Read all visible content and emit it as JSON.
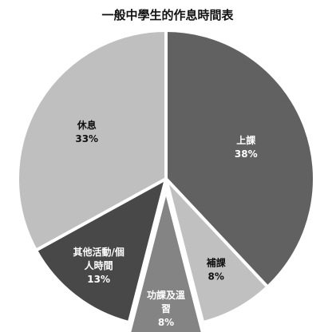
{
  "chart_data": {
    "type": "pie",
    "title": "一般中學生的作息時間表",
    "slices": [
      {
        "name": "上課",
        "value": 38,
        "label": "38%",
        "color": "#616161",
        "text_color": "#ffffff",
        "exploded": false
      },
      {
        "name": "補課",
        "value": 8,
        "label": "8%",
        "color": "#c0c0c0",
        "text_color": "#111111",
        "exploded": false
      },
      {
        "name": "功課及溫習",
        "value": 8,
        "label": "8%",
        "color": "#848484",
        "text_color": "#ffffff",
        "exploded": true
      },
      {
        "name": "其他活動/個人時間",
        "value": 13,
        "label": "13%",
        "color": "#484848",
        "text_color": "#ffffff",
        "exploded": false
      },
      {
        "name": "休息",
        "value": 33,
        "label": "33%",
        "color": "#bfbfbf",
        "text_color": "#111111",
        "exploded": false
      }
    ],
    "start_angle_deg": 0,
    "direction": "clockwise",
    "slice_border_color": "#ffffff",
    "legend": "none"
  }
}
